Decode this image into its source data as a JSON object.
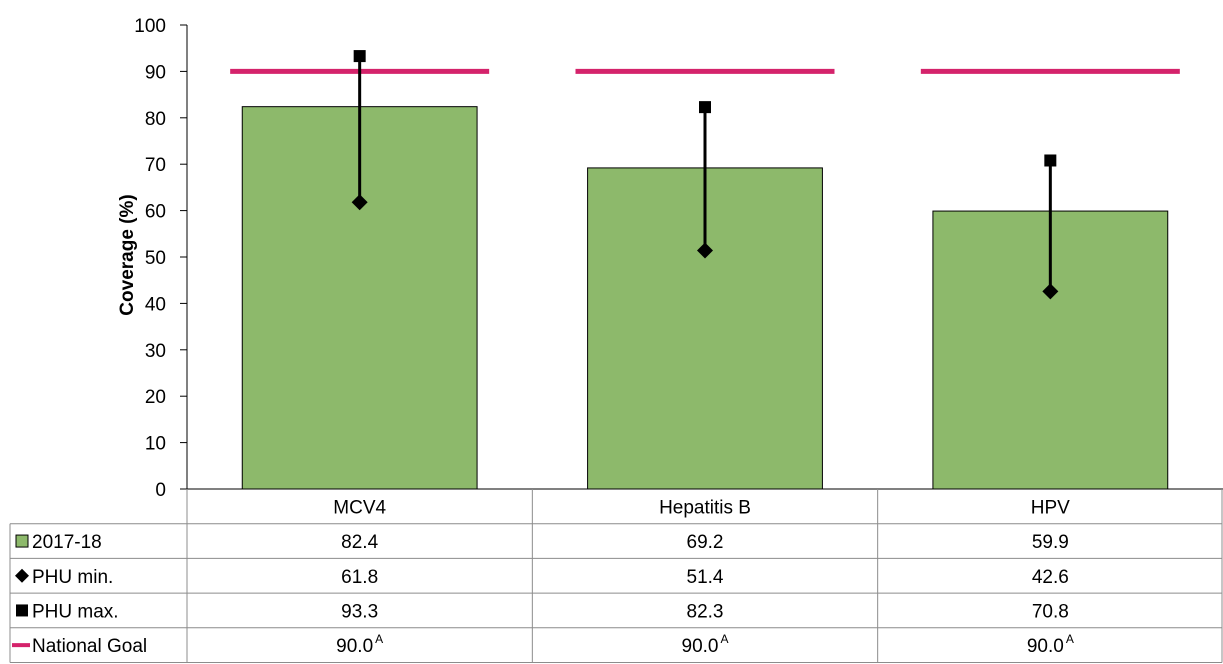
{
  "chart_data": {
    "type": "bar",
    "categories": [
      "MCV4",
      "Hepatitis B",
      "HPV"
    ],
    "ylabel": "Coverage (%)",
    "ylim": [
      0,
      100
    ],
    "yticks": [
      "0",
      "10",
      "20",
      "30",
      "40",
      "50",
      "60",
      "70",
      "80",
      "90",
      "100"
    ],
    "grid": false,
    "series": [
      {
        "name": "2017-18",
        "kind": "bar",
        "color": "#8DB96B",
        "values": [
          82.4,
          69.2,
          59.9
        ],
        "labels": [
          "82.4",
          "69.2",
          "59.9"
        ]
      },
      {
        "name": "PHU min.",
        "kind": "diamond-marker",
        "color": "#000000",
        "values": [
          61.8,
          51.4,
          42.6
        ],
        "labels": [
          "61.8",
          "51.4",
          "42.6"
        ]
      },
      {
        "name": "PHU max.",
        "kind": "square-marker",
        "color": "#000000",
        "values": [
          93.3,
          82.3,
          70.8
        ],
        "labels": [
          "93.3",
          "82.3",
          "70.8"
        ]
      },
      {
        "name": "National Goal",
        "kind": "line",
        "color": "#D4236B",
        "values": [
          90.0,
          90.0,
          90.0
        ],
        "labels": [
          "90.0",
          "90.0",
          "90.0"
        ],
        "superscript": "A"
      }
    ],
    "legend": "data-table"
  }
}
